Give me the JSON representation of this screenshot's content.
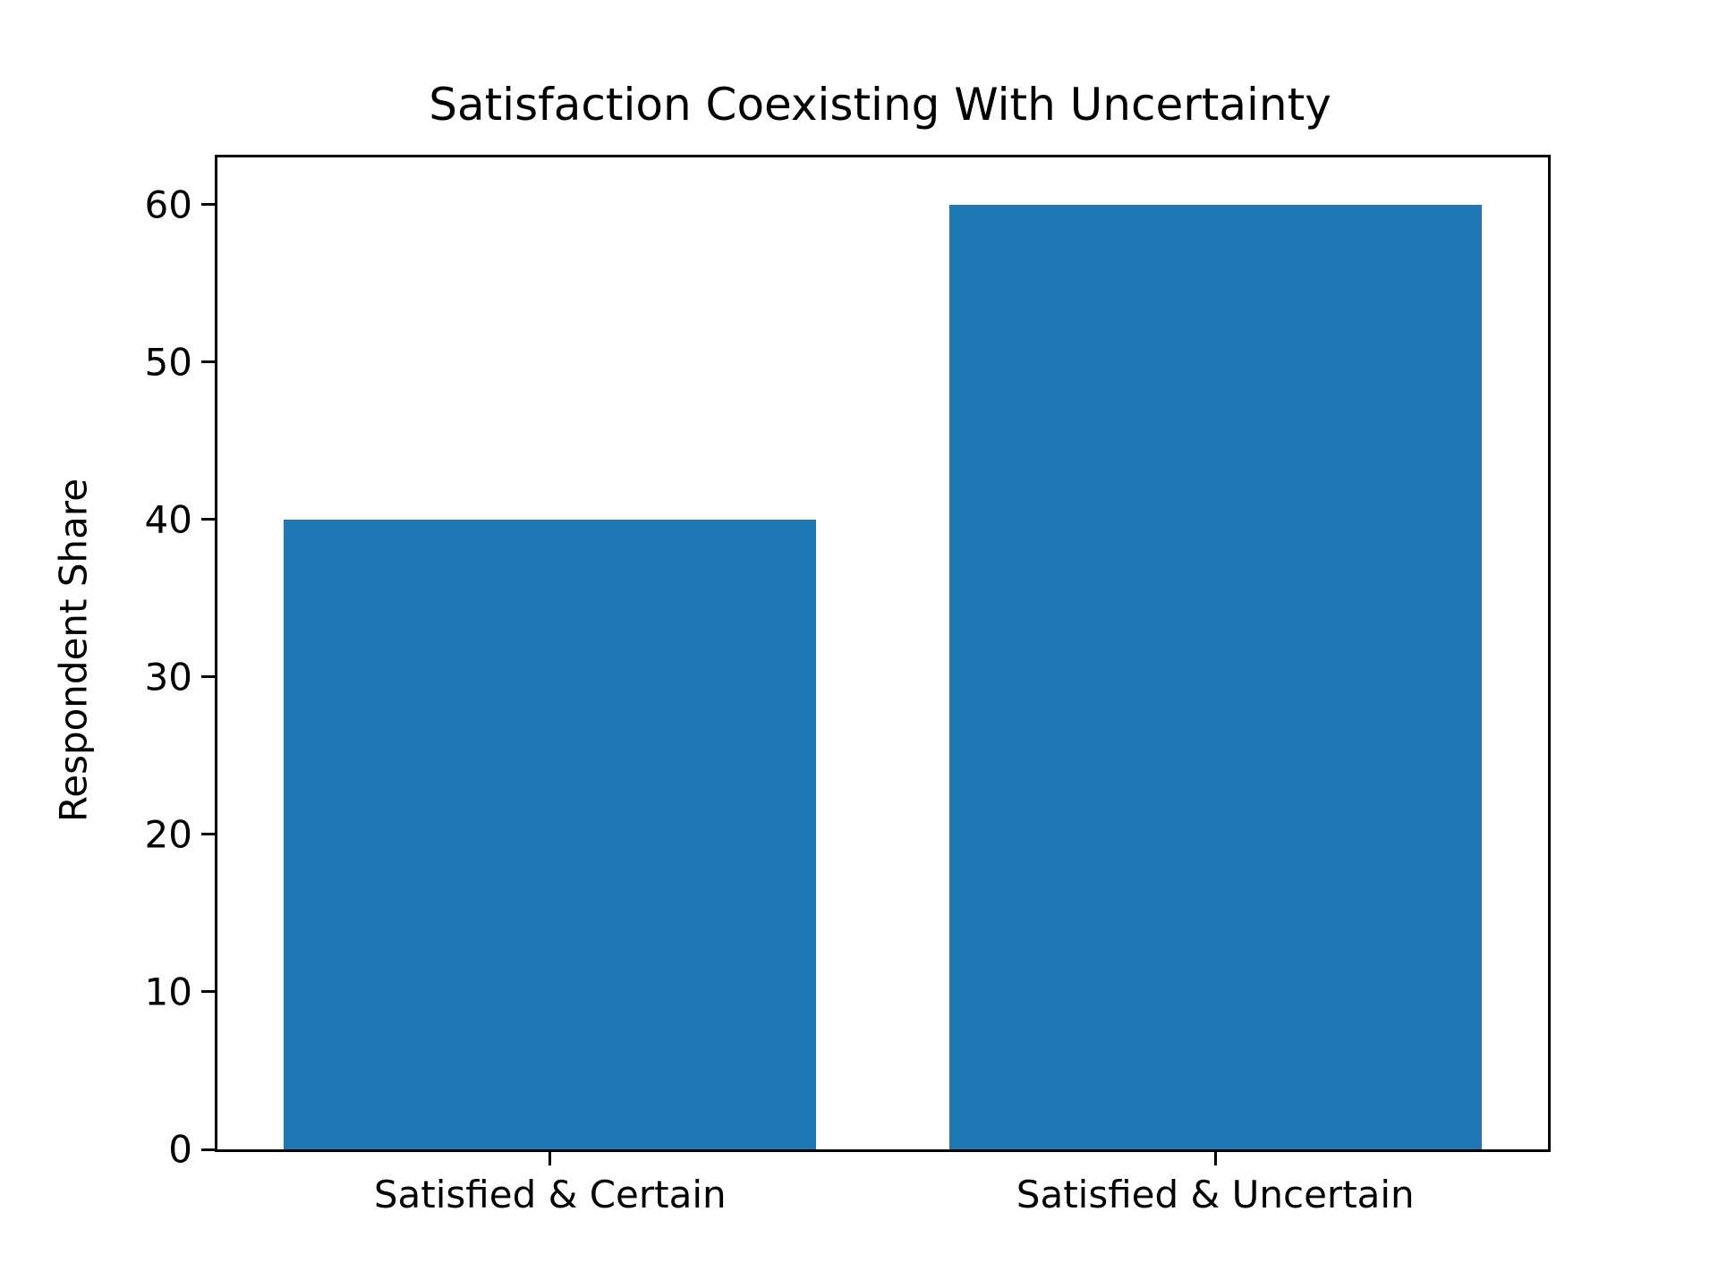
{
  "figure": {
    "background": "#ffffff",
    "text_color": "#000000"
  },
  "chart_data": {
    "type": "bar",
    "title": "Satisfaction Coexisting With Uncertainty",
    "categories": [
      "Satisfied & Certain",
      "Satisfied & Uncertain"
    ],
    "values": [
      40,
      60
    ],
    "xlabel": "",
    "ylabel": "Respondent Share",
    "ylim": [
      0,
      63
    ],
    "yticks": [
      0,
      10,
      20,
      30,
      40,
      50,
      60
    ],
    "bar_color": "#1f77b4",
    "bar_width_fraction": 0.8,
    "grid": false,
    "legend_position": "none"
  }
}
